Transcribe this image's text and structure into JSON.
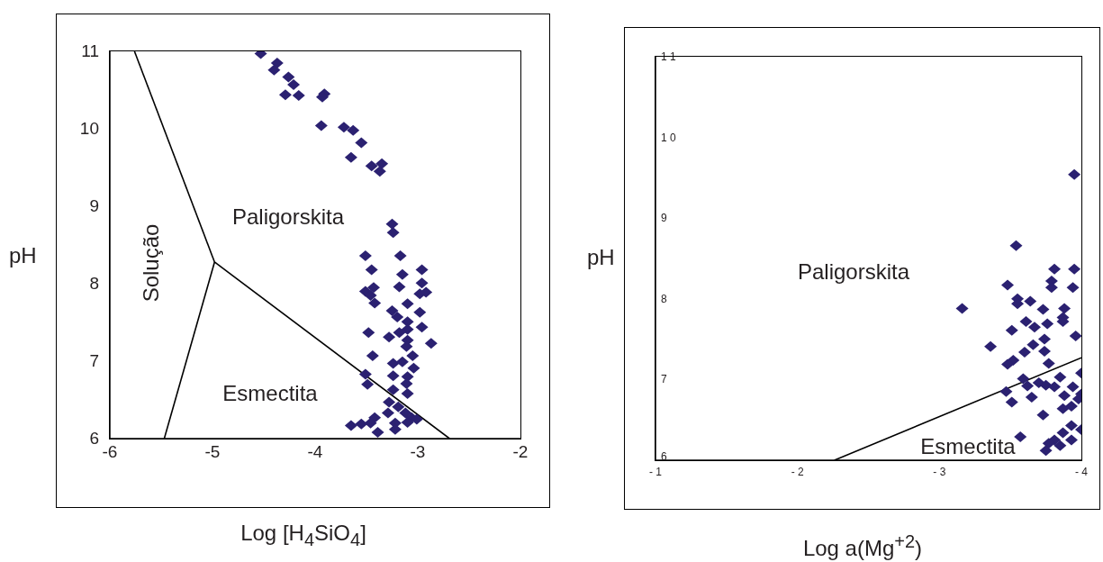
{
  "chart_data": [
    {
      "type": "scatter",
      "xlabel": "Log [H$_{4}$SiO$_{4}$]",
      "ylabel": "pH",
      "xlim": [
        -6,
        -2
      ],
      "ylim": [
        6,
        11
      ],
      "xticks": [
        -6,
        -5,
        -4,
        -3,
        -2
      ],
      "yticks": [
        6,
        7,
        8,
        9,
        10,
        11
      ],
      "annotations": [
        "Solução",
        "Paligorskita",
        "Esmectita"
      ],
      "series": [
        {
          "type": "scatter",
          "marker": "diamond",
          "color": "#2b2171",
          "x": [
            -4.53,
            -4.37,
            -4.4,
            -4.26,
            -4.21,
            -4.29,
            -4.16,
            -3.91,
            -3.93,
            -3.94,
            -3.72,
            -3.63,
            -3.55,
            -3.65,
            -3.45,
            -3.35,
            -3.37,
            -3.25,
            -3.24,
            -3.51,
            -3.17,
            -3.45,
            -2.96,
            -3.15,
            -2.96,
            -3.18,
            -3.43,
            -3.51,
            -3.46,
            -2.98,
            -2.92,
            -3.42,
            -3.1,
            -3.25,
            -2.98,
            -3.2,
            -3.1,
            -3.1,
            -2.96,
            -3.48,
            -3.28,
            -3.18,
            -3.1,
            -3.11,
            -2.87,
            -3.44,
            -3.05,
            -3.24,
            -3.15,
            -3.04,
            -3.51,
            -3.24,
            -3.1,
            -3.49,
            -3.11,
            -3.24,
            -3.1,
            -3.28,
            -3.19,
            -3.29,
            -3.12,
            -3.06,
            -3.01,
            -3.1,
            -3.42,
            -3.46,
            -3.55,
            -3.65,
            -3.22,
            -3.22,
            -3.39
          ],
          "values": [
            10.97,
            10.85,
            10.76,
            10.67,
            10.57,
            10.44,
            10.43,
            10.45,
            10.41,
            10.04,
            10.02,
            9.98,
            9.82,
            9.63,
            9.52,
            9.55,
            9.45,
            8.77,
            8.66,
            8.36,
            8.36,
            8.18,
            8.18,
            8.12,
            8.01,
            7.96,
            7.95,
            7.9,
            7.85,
            7.87,
            7.89,
            7.75,
            7.74,
            7.65,
            7.63,
            7.57,
            7.51,
            7.41,
            7.44,
            7.37,
            7.31,
            7.37,
            7.27,
            7.19,
            7.23,
            7.07,
            7.07,
            6.97,
            6.99,
            6.91,
            6.83,
            6.81,
            6.8,
            6.7,
            6.71,
            6.63,
            6.58,
            6.47,
            6.41,
            6.33,
            6.33,
            6.27,
            6.25,
            6.21,
            6.27,
            6.2,
            6.19,
            6.17,
            6.2,
            6.12,
            6.08
          ]
        },
        {
          "type": "line",
          "marker": "none",
          "color": "#000000",
          "x": [
            -5.76,
            -4.98
          ],
          "values": [
            11,
            8.28
          ]
        },
        {
          "type": "line",
          "marker": "none",
          "color": "#000000",
          "x": [
            -4.98,
            -5.47
          ],
          "values": [
            8.28,
            6
          ]
        },
        {
          "type": "line",
          "marker": "none",
          "color": "#000000",
          "x": [
            -4.98,
            -2.69
          ],
          "values": [
            8.28,
            6
          ]
        }
      ]
    },
    {
      "type": "scatter",
      "xlabel": "Log a(Mg$^{+2}$)",
      "ylabel": "pH",
      "xlim": [
        -1,
        -4
      ],
      "ylim": [
        6,
        11
      ],
      "xticks": [
        {
          "value": -1,
          "label": "- 1"
        },
        {
          "value": -2,
          "label": "- 2"
        },
        {
          "value": -3,
          "label": "- 3"
        },
        {
          "value": -4,
          "label": "- 4"
        }
      ],
      "yticks": [
        6,
        7,
        8,
        9,
        {
          "value": 10,
          "label": "1 0"
        },
        {
          "value": 11,
          "label": "1 1"
        }
      ],
      "annotations": [
        "Paligorskita",
        "Esmectita"
      ],
      "series": [
        {
          "type": "scatter",
          "marker": "diamond",
          "color": "#2b2171",
          "x": [
            -3.95,
            -3.54,
            -3.81,
            -3.95,
            -3.48,
            -3.79,
            -3.79,
            -3.94,
            -3.55,
            -3.64,
            -3.55,
            -3.16,
            -3.73,
            -3.88,
            -3.87,
            -3.87,
            -3.61,
            -3.76,
            -3.67,
            -3.51,
            -3.96,
            -3.74,
            -3.66,
            -3.36,
            -3.6,
            -3.74,
            -3.52,
            -3.48,
            -3.77,
            -4.0,
            -3.59,
            -3.85,
            -3.7,
            -3.75,
            -3.81,
            -3.62,
            -3.94,
            -3.47,
            -4.0,
            -3.88,
            -3.65,
            -3.98,
            -3.51,
            -3.93,
            -3.87,
            -3.73,
            -3.93,
            -4.0,
            -3.57,
            -3.87,
            -3.93,
            -3.81,
            -3.77,
            -3.85,
            -3.75
          ],
          "values": [
            9.54,
            8.66,
            8.37,
            8.37,
            8.17,
            8.22,
            8.14,
            8.14,
            8.0,
            7.97,
            7.94,
            7.88,
            7.87,
            7.88,
            7.77,
            7.72,
            7.72,
            7.69,
            7.65,
            7.61,
            7.54,
            7.5,
            7.43,
            7.41,
            7.34,
            7.35,
            7.24,
            7.19,
            7.2,
            7.08,
            7.01,
            7.03,
            6.96,
            6.93,
            6.91,
            6.92,
            6.91,
            6.85,
            6.82,
            6.8,
            6.78,
            6.76,
            6.72,
            6.67,
            6.64,
            6.56,
            6.43,
            6.38,
            6.29,
            6.34,
            6.25,
            6.25,
            6.21,
            6.18,
            6.12
          ]
        },
        {
          "type": "line",
          "marker": "none",
          "color": "#000000",
          "x": [
            -2.26,
            -4
          ],
          "values": [
            6,
            7.27
          ]
        }
      ]
    }
  ]
}
